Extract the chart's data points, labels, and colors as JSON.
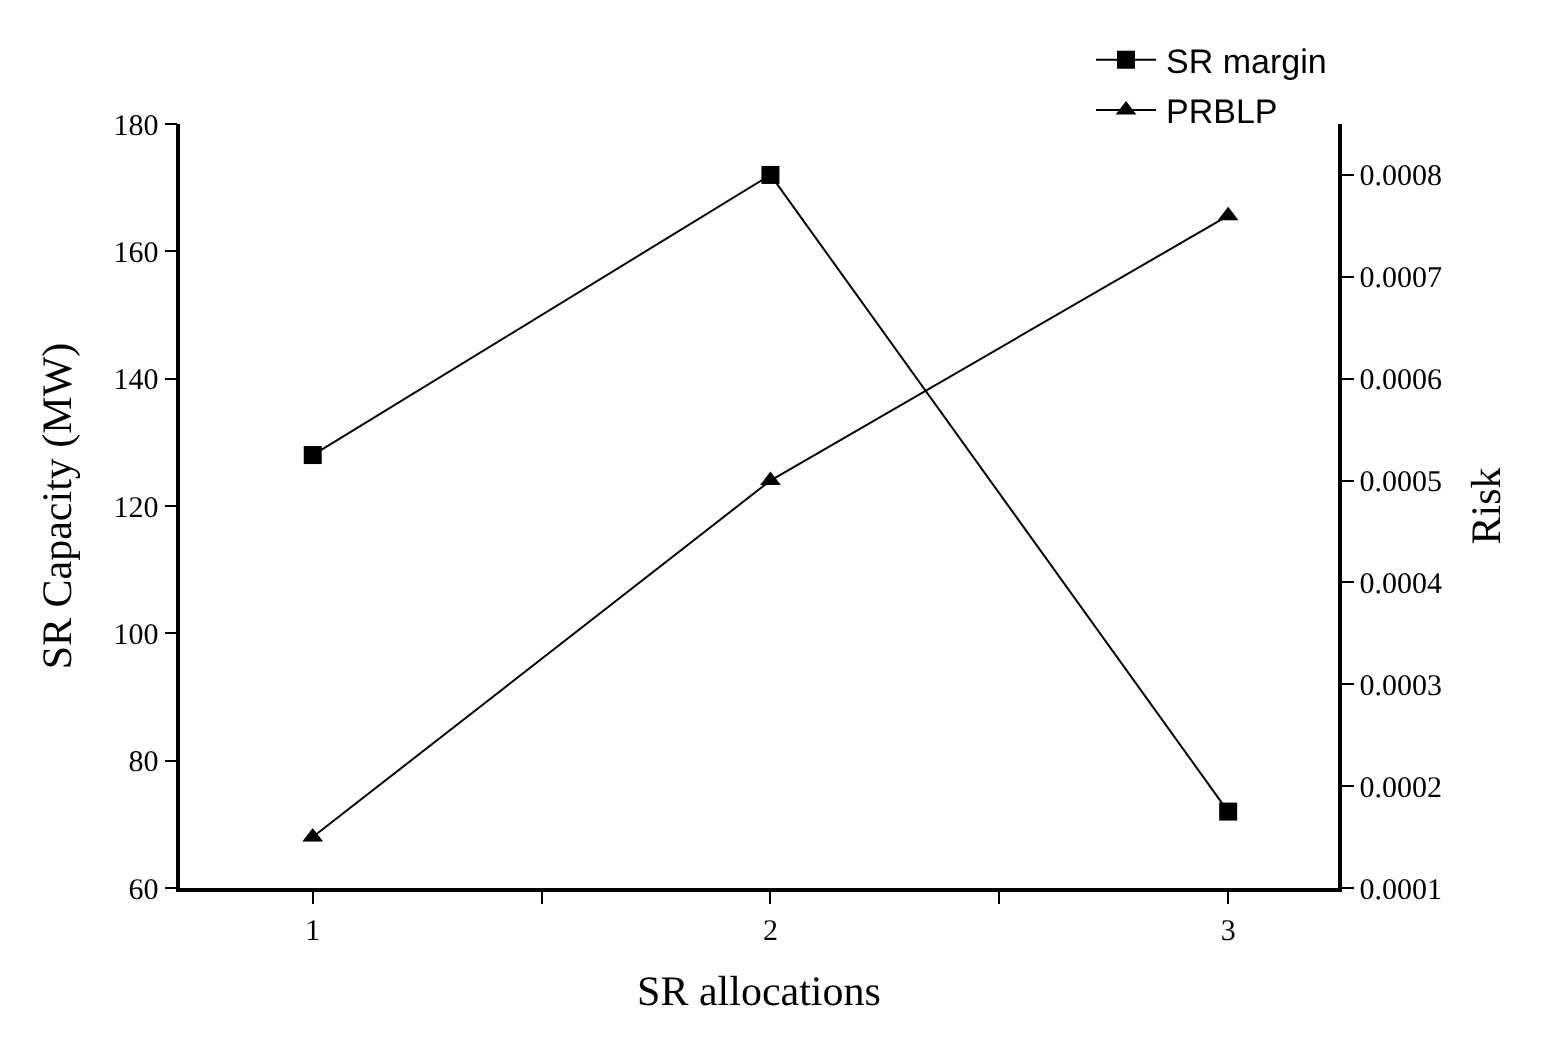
{
  "chart_data": {
    "type": "line",
    "xlabel": "SR allocations",
    "ylabel": "SR Capacity (MW)",
    "y2label": "Risk",
    "x": [
      1,
      2,
      3
    ],
    "series": [
      {
        "name": "SR margin",
        "color": "#000000",
        "values": [
          128,
          172,
          72
        ],
        "marker": "square"
      },
      {
        "name": "PRBLP",
        "color": "#000000",
        "values": [
          0.00015,
          0.0005,
          0.00076
        ],
        "marker": "triangle",
        "axis": "y2"
      }
    ],
    "xlim": [
      0.71,
      3.24
    ],
    "xticks": [
      1,
      {
        "value": 1.5,
        "label": null
      },
      2,
      {
        "value": 2.5,
        "label": null
      },
      3
    ],
    "ylim": [
      60,
      180
    ],
    "yticks": [
      60,
      80,
      100,
      120,
      140,
      160,
      180
    ],
    "y2lim": [
      0.0001,
      0.00085
    ],
    "y2ticks": [
      0.0001,
      0.0002,
      0.0003,
      0.0004,
      0.0005,
      0.0006,
      0.0007,
      0.0008
    ],
    "legend": "top right",
    "line_style": "solid"
  }
}
